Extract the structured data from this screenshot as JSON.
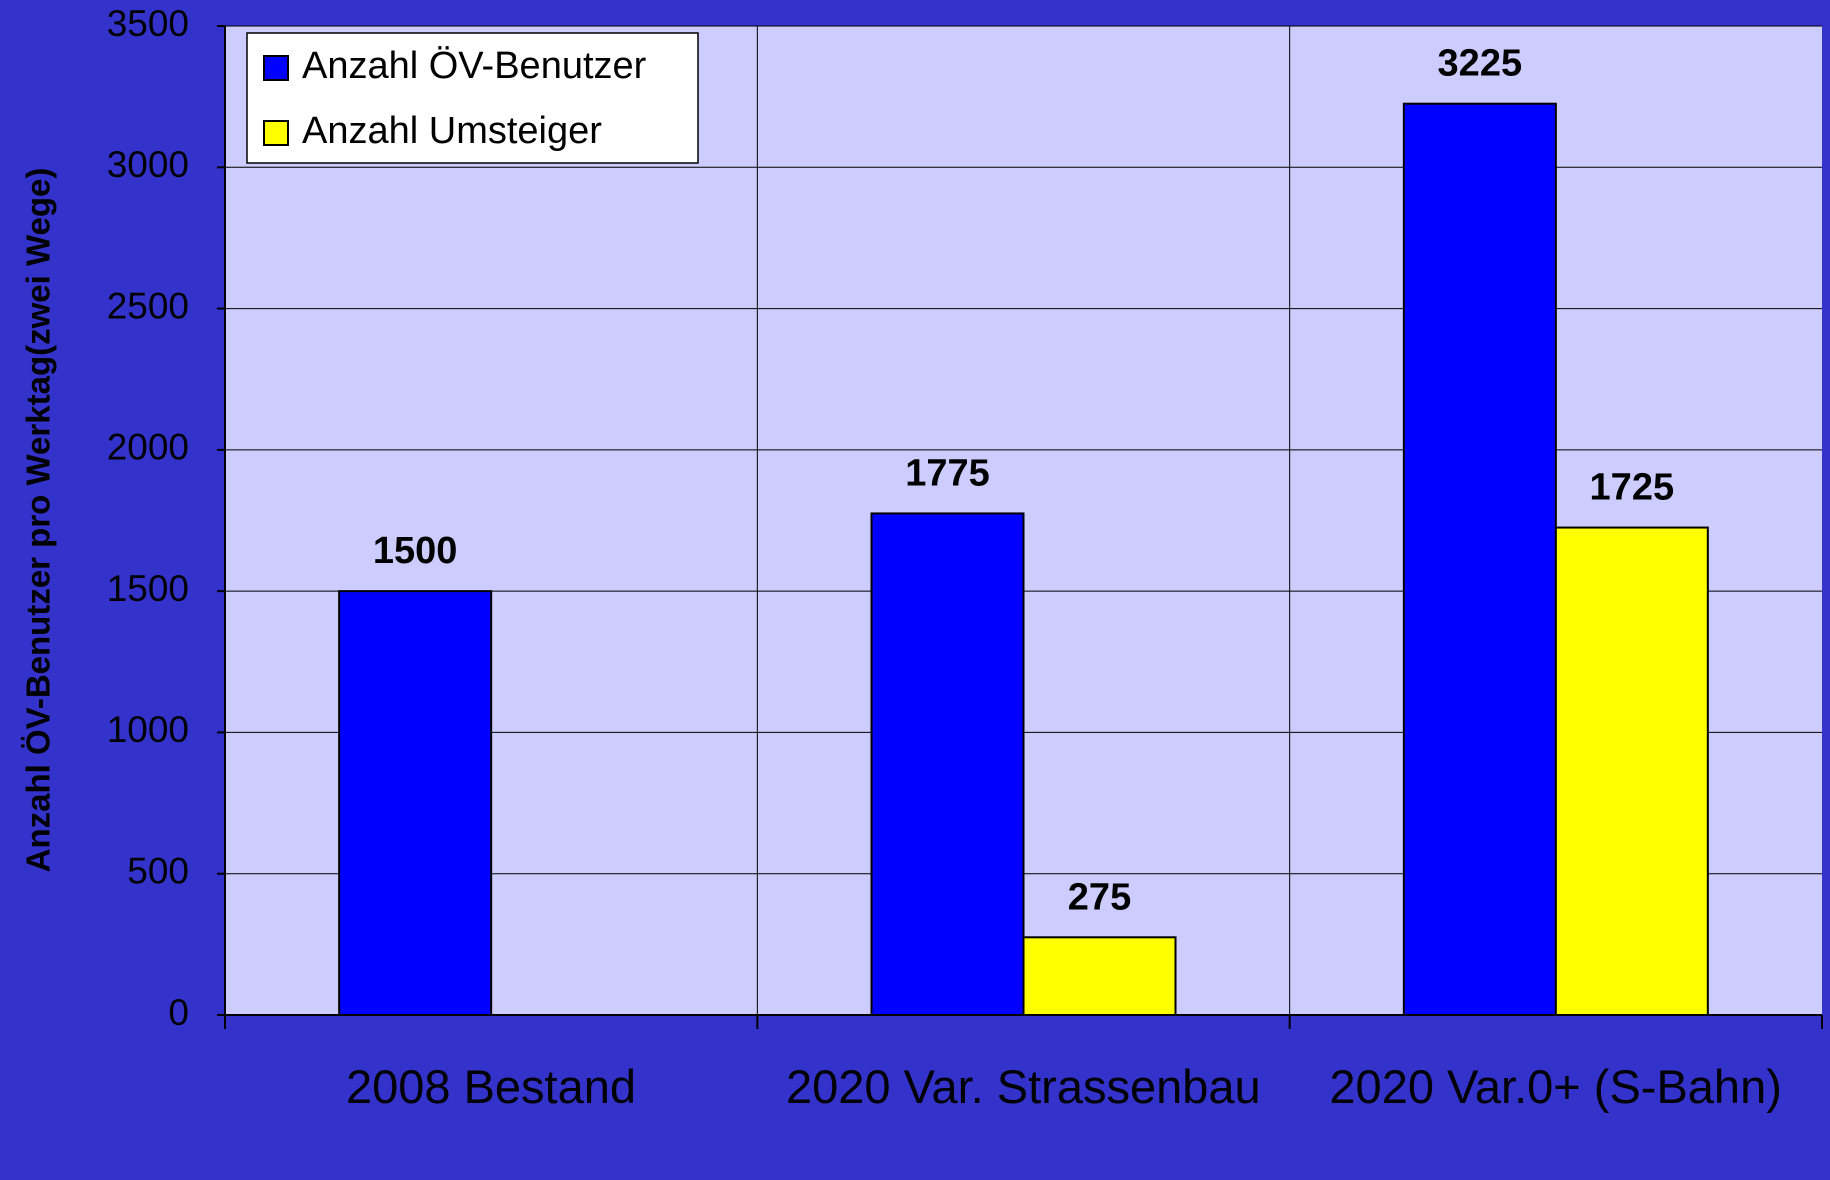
{
  "chart_data": {
    "type": "bar",
    "y_label": "Anzahl ÖV-Benutzer pro Werktag(zwei Wege)",
    "categories": [
      "2008 Bestand",
      "2020 Var. Strassenbau",
      "2020 Var.0+ (S-Bahn)"
    ],
    "series": [
      {
        "name": "Anzahl ÖV-Benutzer",
        "color": "#0000ff",
        "values": [
          1500,
          1775,
          3225
        ]
      },
      {
        "name": "Anzahl Umsteiger",
        "color": "#ffff00",
        "values": [
          null,
          275,
          1725
        ]
      }
    ],
    "ylim": [
      0,
      3500
    ],
    "yticks": [
      0,
      500,
      1000,
      1500,
      2000,
      2500,
      3000,
      3500
    ],
    "grid": true,
    "legend": "upper left",
    "background": "#ccccff"
  }
}
